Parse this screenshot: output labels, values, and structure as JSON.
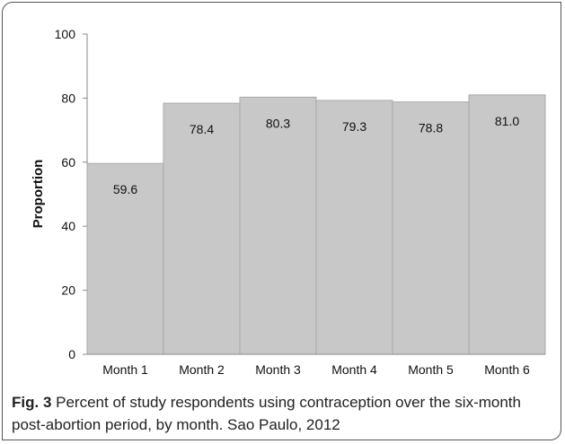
{
  "chart_data": {
    "type": "bar",
    "categories": [
      "Month 1",
      "Month 2",
      "Month 3",
      "Month 4",
      "Month 5",
      "Month 6"
    ],
    "values": [
      59.6,
      78.4,
      80.3,
      79.3,
      78.8,
      81.0
    ],
    "data_labels": [
      "59.6",
      "78.4",
      "80.3",
      "79.3",
      "78.8",
      "81.0"
    ],
    "ylabel": "Proportion",
    "xlabel": "",
    "ylim": [
      0,
      100
    ],
    "yticks": [
      0,
      20,
      40,
      60,
      80,
      100
    ],
    "grid": false,
    "bar_color": "#c8c8c8",
    "bar_edge_color": "#a9a9a9"
  },
  "caption": {
    "label": "Fig. 3",
    "text": " Percent of study respondents using contraception over the six-month post-abortion period, by month. Sao Paulo, 2012"
  }
}
